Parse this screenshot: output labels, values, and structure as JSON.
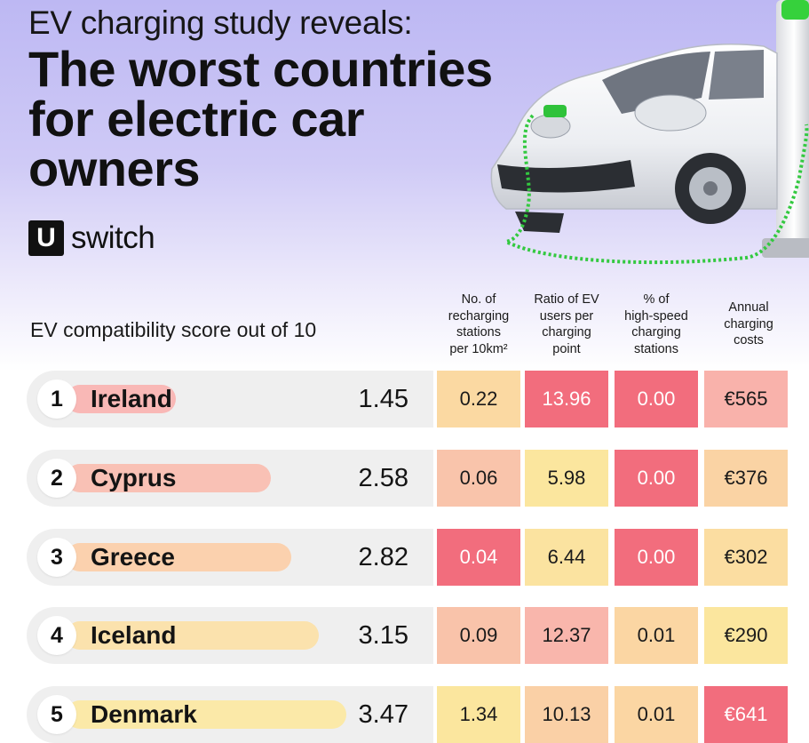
{
  "header": {
    "kicker": "EV charging study reveals:",
    "headline_lines": [
      "The worst countries",
      "for electric car",
      "owners"
    ]
  },
  "logo": {
    "mark": "U",
    "text": "switch"
  },
  "colors": {
    "background_top": "#bdb8f3",
    "red": "#f26d7d",
    "pink": "#f8b3ad",
    "peach": "#fad3a4",
    "yellow": "#fbe69e",
    "row_bg": "#efefef"
  },
  "chart_data": {
    "type": "table",
    "score_label": "EV compatibility score out of 10",
    "columns": [
      {
        "key": "stations",
        "label_lines": [
          "No. of",
          "recharging",
          "stations",
          "per 10km²"
        ]
      },
      {
        "key": "ratio",
        "label_lines": [
          "Ratio of EV",
          "users per",
          "charging",
          "point"
        ]
      },
      {
        "key": "highspeed",
        "label_lines": [
          "% of",
          "high-speed",
          "charging",
          "stations"
        ]
      },
      {
        "key": "costs",
        "label_lines": [
          "Annual",
          "charging",
          "costs"
        ]
      }
    ],
    "score_max": 10,
    "rows": [
      {
        "rank": "1",
        "country": "Ireland",
        "score": 1.45,
        "cells": [
          {
            "value": "0.22",
            "color": "#fbd9a2",
            "text": "dark"
          },
          {
            "value": "13.96",
            "color": "#f26d7d",
            "text": "light"
          },
          {
            "value": "0.00",
            "color": "#f26d7d",
            "text": "light"
          },
          {
            "value": "€565",
            "color": "#f9b2ab",
            "text": "dark"
          }
        ]
      },
      {
        "rank": "2",
        "country": "Cyprus",
        "score": 2.58,
        "cells": [
          {
            "value": "0.06",
            "color": "#f9c4ab",
            "text": "dark"
          },
          {
            "value": "5.98",
            "color": "#fbe69e",
            "text": "dark"
          },
          {
            "value": "0.00",
            "color": "#f26d7d",
            "text": "light"
          },
          {
            "value": "€376",
            "color": "#fad3a4",
            "text": "dark"
          }
        ]
      },
      {
        "rank": "3",
        "country": "Greece",
        "score": 2.82,
        "cells": [
          {
            "value": "0.04",
            "color": "#f26d7d",
            "text": "light"
          },
          {
            "value": "6.44",
            "color": "#fbe3a0",
            "text": "dark"
          },
          {
            "value": "0.00",
            "color": "#f26d7d",
            "text": "light"
          },
          {
            "value": "€302",
            "color": "#fbdda1",
            "text": "dark"
          }
        ]
      },
      {
        "rank": "4",
        "country": "Iceland",
        "score": 3.15,
        "cells": [
          {
            "value": "0.09",
            "color": "#f9c3aa",
            "text": "dark"
          },
          {
            "value": "12.37",
            "color": "#f9b6ac",
            "text": "dark"
          },
          {
            "value": "0.01",
            "color": "#fbd6a3",
            "text": "dark"
          },
          {
            "value": "€290",
            "color": "#fbe69e",
            "text": "dark"
          }
        ]
      },
      {
        "rank": "5",
        "country": "Denmark",
        "score": 3.47,
        "cells": [
          {
            "value": "1.34",
            "color": "#fbe69e",
            "text": "dark"
          },
          {
            "value": "10.13",
            "color": "#fad0a6",
            "text": "dark"
          },
          {
            "value": "0.01",
            "color": "#fbd6a3",
            "text": "dark"
          },
          {
            "value": "€641",
            "color": "#f26d7d",
            "text": "light"
          }
        ]
      }
    ]
  }
}
